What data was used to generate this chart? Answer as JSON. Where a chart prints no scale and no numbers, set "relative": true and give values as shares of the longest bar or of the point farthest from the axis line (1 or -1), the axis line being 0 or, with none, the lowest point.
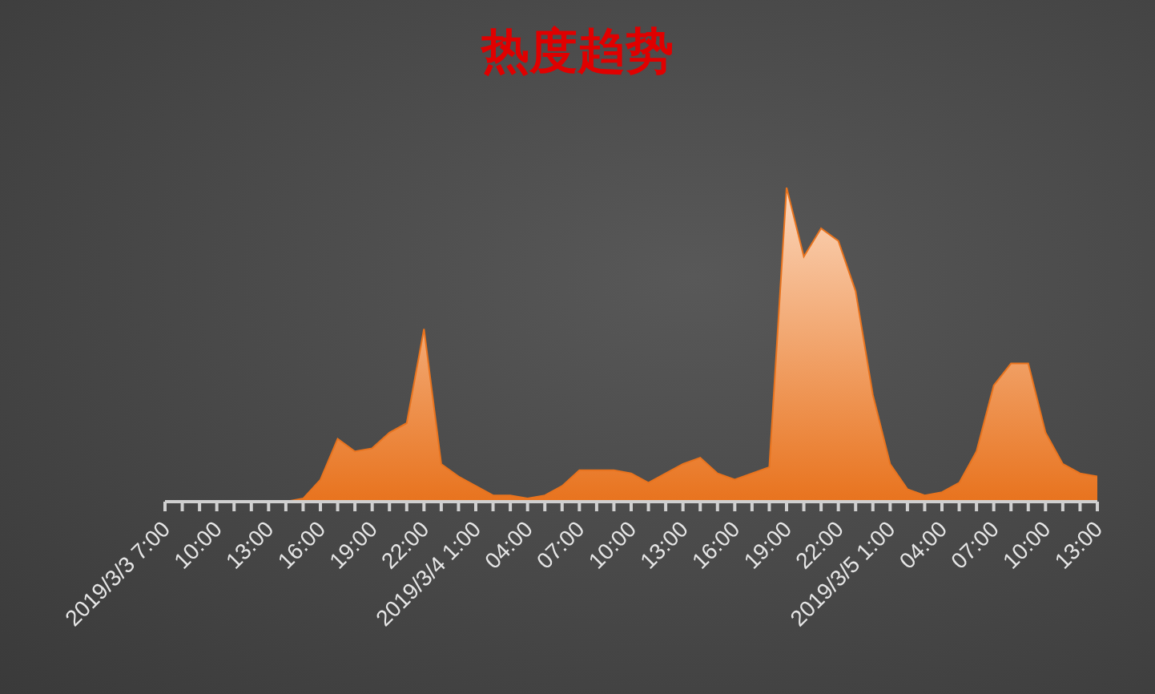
{
  "chart_data": {
    "type": "area",
    "title": "热度趋势",
    "relative": true,
    "categories": [
      "2019/3/3 7:00",
      null,
      null,
      "10:00",
      null,
      null,
      "13:00",
      null,
      null,
      "16:00",
      null,
      null,
      "19:00",
      null,
      null,
      "22:00",
      null,
      null,
      "2019/3/4 1:00",
      null,
      null,
      "04:00",
      null,
      null,
      "07:00",
      null,
      null,
      "10:00",
      null,
      null,
      "13:00",
      null,
      null,
      "16:00",
      null,
      null,
      "19:00",
      null,
      null,
      "22:00",
      null,
      null,
      "2019/3/5 1:00",
      null,
      null,
      "04:00",
      null,
      null,
      "07:00",
      null,
      null,
      "10:00",
      null,
      null,
      "13:00"
    ],
    "series": [
      {
        "color": "#e8731e",
        "values": [
          0,
          0,
          0,
          0,
          0,
          0,
          0,
          0,
          0.01,
          0.07,
          0.2,
          0.16,
          0.17,
          0.22,
          0.25,
          0.55,
          0.12,
          0.08,
          0.05,
          0.02,
          0.02,
          0.01,
          0.02,
          0.05,
          0.1,
          0.1,
          0.1,
          0.09,
          0.06,
          0.09,
          0.12,
          0.14,
          0.09,
          0.07,
          0.09,
          0.11,
          1,
          0.78,
          0.87,
          0.83,
          0.67,
          0.34,
          0.12,
          0.04,
          0.02,
          0.03,
          0.06,
          0.16,
          0.37,
          0.44,
          0.44,
          0.22,
          0.12,
          0.09,
          0.08
        ]
      }
    ]
  }
}
